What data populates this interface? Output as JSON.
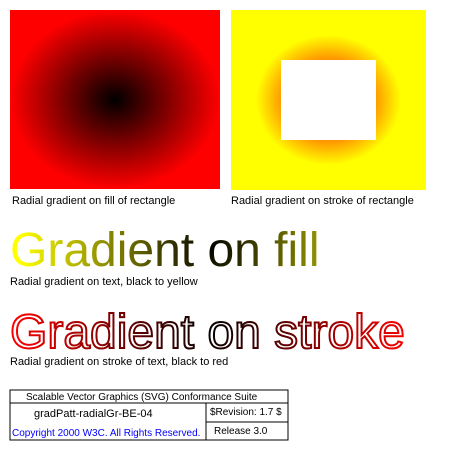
{
  "captions": {
    "fill_rect": "Radial gradient on fill of rectangle",
    "stroke_rect": "Radial gradient on stroke of rectangle",
    "text_fill": "Radial gradient on text, black to yellow",
    "text_stroke": "Radial gradient on stroke of text, black to red"
  },
  "big_text": {
    "fill": "Gradient on fill",
    "stroke": "Gradient on stroke"
  },
  "legend": {
    "suite": "Scalable Vector Graphics (SVG) Conformance Suite",
    "test_id": "gradPatt-radialGr-BE-04",
    "revision": "$Revision: 1.7 $",
    "copyright": "Copyright 2000 W3C. All Rights Reserved.",
    "release": "Release 3.0"
  },
  "colors": {
    "black": "#000000",
    "red": "#ff0000",
    "yellow": "#ffff00",
    "orange": "#ff8c00",
    "copyright_blue": "#0000ff"
  }
}
